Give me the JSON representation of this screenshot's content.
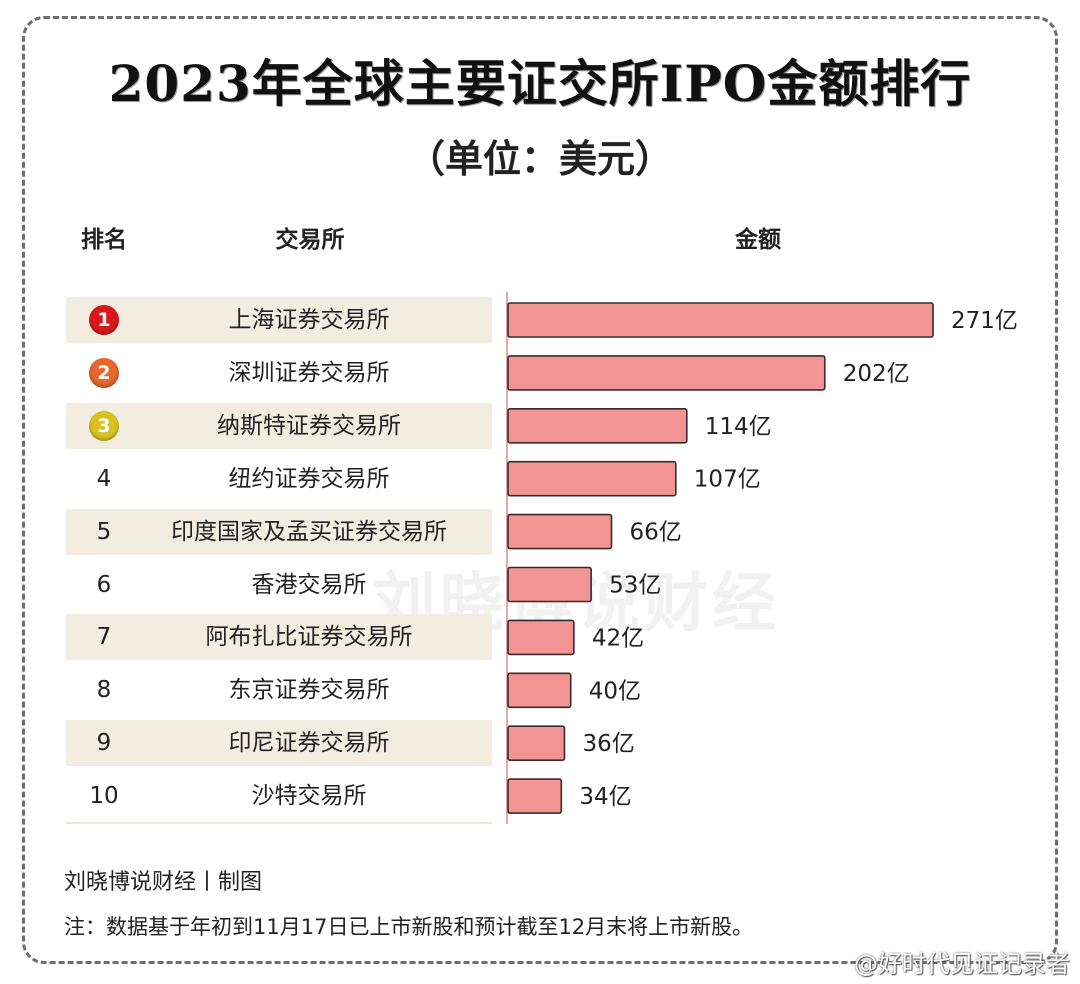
{
  "title": "2023年全球主要证交所IPO金额排行",
  "subtitle": "（单位：美元）",
  "headers": {
    "rank": "排名",
    "exchange": "交易所",
    "amount": "金额"
  },
  "watermark": "刘晓博说财经",
  "footer": {
    "credit": "刘晓博说财经丨制图",
    "note": "注：数据基于年初到11月17日已上市新股和预计截至12月末将上市新股。",
    "weibo": "@好时代见证记录者"
  },
  "colors": {
    "bar_fill": "#f39494",
    "bar_stroke": "#3a2a2a",
    "row_band": "#f3ece1",
    "medal_1": "#d8191c",
    "medal_2": "#e4682b",
    "medal_3": "#d9c21f"
  },
  "chart_data": {
    "type": "bar",
    "orientation": "horizontal",
    "unit_label": "亿",
    "ranks": [
      "1",
      "2",
      "3",
      "4",
      "5",
      "6",
      "7",
      "8",
      "9",
      "10"
    ],
    "categories": [
      "上海证券交易所",
      "深圳证券交易所",
      "纳斯特证券交易所",
      "纽约证券交易所",
      "印度国家及孟买证券交易所",
      "香港交易所",
      "阿布扎比证券交易所",
      "东京证券交易所",
      "印尼证券交易所",
      "沙特交易所"
    ],
    "values": [
      271,
      202,
      114,
      107,
      66,
      53,
      42,
      40,
      36,
      34
    ],
    "data_labels": [
      "271亿",
      "202亿",
      "114亿",
      "107亿",
      "66亿",
      "53亿",
      "42亿",
      "40亿",
      "36亿",
      "34亿"
    ],
    "xlim": [
      0,
      271
    ],
    "grid": false,
    "legend": "none"
  }
}
